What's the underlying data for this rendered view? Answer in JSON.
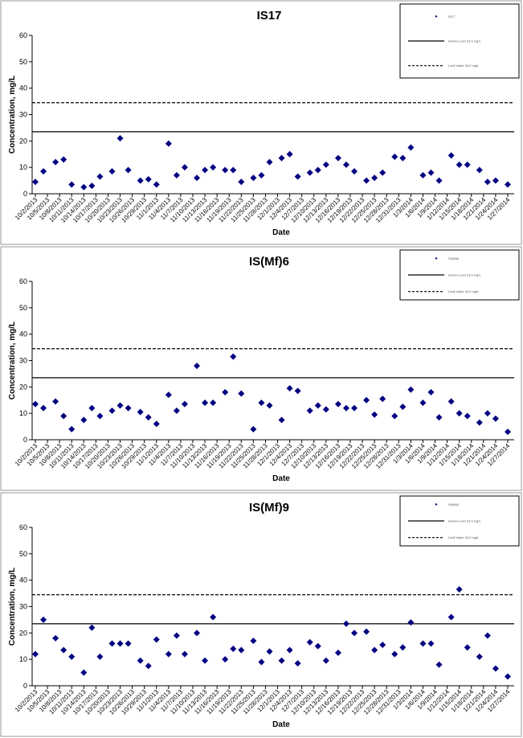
{
  "chart_data": [
    {
      "type": "scatter",
      "title": "IS17",
      "x_label": "Date",
      "y_label": "Concentration, mg/L",
      "xlim": [
        "10/2/2013",
        "1/27/2014"
      ],
      "xticks": [
        "10/2/2013",
        "10/5/2013",
        "10/8/2013",
        "10/11/2013",
        "10/14/2013",
        "10/17/2013",
        "10/20/2013",
        "10/23/2013",
        "10/26/2013",
        "10/29/2013",
        "11/1/2013",
        "11/4/2013",
        "11/7/2013",
        "11/10/2013",
        "11/13/2013",
        "11/16/2013",
        "11/19/2013",
        "11/22/2013",
        "11/25/2013",
        "11/28/2013",
        "12/1/2013",
        "12/4/2013",
        "12/7/2013",
        "12/10/2013",
        "12/13/2013",
        "12/16/2013",
        "12/19/2013",
        "12/22/2013",
        "12/25/2013",
        "12/28/2013",
        "12/31/2013",
        "1/3/2014",
        "1/6/2014",
        "1/9/2014",
        "1/12/2014",
        "1/15/2014",
        "1/18/2014",
        "1/21/2014",
        "1/24/2014",
        "1/27/2014"
      ],
      "x": [
        "10/2/2013",
        "10/4/2013",
        "10/7/2013",
        "10/9/2013",
        "10/11/2013",
        "10/14/2013",
        "10/16/2013",
        "10/18/2013",
        "10/21/2013",
        "10/23/2013",
        "10/25/2013",
        "10/28/2013",
        "10/30/2013",
        "11/1/2013",
        "11/4/2013",
        "11/6/2013",
        "11/8/2013",
        "11/11/2013",
        "11/13/2013",
        "11/15/2013",
        "11/18/2013",
        "11/20/2013",
        "11/22/2013",
        "11/25/2013",
        "11/27/2013",
        "11/29/2013",
        "12/2/2013",
        "12/4/2013",
        "12/6/2013",
        "12/9/2013",
        "12/11/2013",
        "12/13/2013",
        "12/16/2013",
        "12/18/2013",
        "12/20/2013",
        "12/23/2013",
        "12/25/2013",
        "12/27/2013",
        "12/30/2013",
        "1/1/2014",
        "1/3/2014",
        "1/6/2014",
        "1/8/2014",
        "1/10/2014",
        "1/13/2014",
        "1/15/2014",
        "1/17/2014",
        "1/20/2014",
        "1/22/2014",
        "1/24/2014",
        "1/27/2014"
      ],
      "ylim": [
        0,
        60
      ],
      "yticks": [
        0,
        10,
        20,
        30,
        40,
        50,
        60
      ],
      "series": [
        {
          "name": "IS17",
          "color": "#000080",
          "values": [
            4.5,
            8.5,
            12,
            13,
            3.5,
            2.5,
            3,
            6.5,
            8.5,
            21,
            9,
            5,
            5.5,
            3.5,
            19,
            7,
            10,
            6,
            9,
            10,
            9,
            9,
            4.5,
            6,
            7,
            12,
            13.5,
            15,
            6.5,
            8,
            9,
            11,
            13.5,
            11,
            8.5,
            5,
            6,
            8,
            14,
            13.5,
            17.5,
            7,
            8,
            5,
            14.5,
            11,
            11,
            9,
            4.5,
            5,
            3.5
          ]
        }
      ],
      "reference_lines": [
        {
          "name": "Action Level 23.5 mg/L",
          "value": 23.5,
          "style": "solid"
        },
        {
          "name": "Limit Value 34.5 mg/L",
          "value": 34.5,
          "style": "dashed"
        }
      ]
    },
    {
      "type": "scatter",
      "title": "IS(Mf)6",
      "x_label": "Date",
      "y_label": "Concentration, mg/L",
      "xlim": [
        "10/2/2013",
        "1/27/2014"
      ],
      "xticks": [
        "10/2/2013",
        "10/5/2013",
        "10/8/2013",
        "10/11/2013",
        "10/14/2013",
        "10/17/2013",
        "10/20/2013",
        "10/23/2013",
        "10/26/2013",
        "10/29/2013",
        "11/1/2013",
        "11/4/2013",
        "11/7/2013",
        "11/10/2013",
        "11/13/2013",
        "11/16/2013",
        "11/19/2013",
        "11/22/2013",
        "11/25/2013",
        "11/28/2013",
        "12/1/2013",
        "12/4/2013",
        "12/7/2013",
        "12/10/2013",
        "12/13/2013",
        "12/16/2013",
        "12/19/2013",
        "12/22/2013",
        "12/25/2013",
        "12/28/2013",
        "12/31/2013",
        "1/3/2014",
        "1/6/2014",
        "1/9/2014",
        "1/12/2014",
        "1/15/2014",
        "1/18/2014",
        "1/21/2014",
        "1/24/2014",
        "1/27/2014"
      ],
      "x": [
        "10/2/2013",
        "10/4/2013",
        "10/7/2013",
        "10/9/2013",
        "10/11/2013",
        "10/14/2013",
        "10/16/2013",
        "10/18/2013",
        "10/21/2013",
        "10/23/2013",
        "10/25/2013",
        "10/28/2013",
        "10/30/2013",
        "11/1/2013",
        "11/4/2013",
        "11/6/2013",
        "11/8/2013",
        "11/11/2013",
        "11/13/2013",
        "11/15/2013",
        "11/18/2013",
        "11/20/2013",
        "11/22/2013",
        "11/25/2013",
        "11/27/2013",
        "11/29/2013",
        "12/2/2013",
        "12/4/2013",
        "12/6/2013",
        "12/9/2013",
        "12/11/2013",
        "12/13/2013",
        "12/16/2013",
        "12/18/2013",
        "12/20/2013",
        "12/23/2013",
        "12/25/2013",
        "12/27/2013",
        "12/30/2013",
        "1/1/2014",
        "1/3/2014",
        "1/6/2014",
        "1/8/2014",
        "1/10/2014",
        "1/13/2014",
        "1/15/2014",
        "1/17/2014",
        "1/20/2014",
        "1/22/2014",
        "1/24/2014",
        "1/27/2014"
      ],
      "ylim": [
        0,
        60
      ],
      "yticks": [
        0,
        10,
        20,
        30,
        40,
        50,
        60
      ],
      "series": [
        {
          "name": "IS(Mf)6",
          "color": "#000080",
          "values": [
            13.5,
            12,
            14.5,
            9,
            4,
            7.5,
            12,
            9,
            11,
            13,
            12,
            10.5,
            8.5,
            6,
            17,
            11,
            13.5,
            28,
            14,
            14,
            18,
            31.5,
            17.5,
            4,
            14,
            13,
            7.5,
            19.5,
            18.5,
            11,
            13,
            11.5,
            13.5,
            12,
            12,
            15,
            9.5,
            15.5,
            9,
            12.5,
            19,
            14,
            18,
            8.5,
            14.5,
            10,
            9,
            6.5,
            10,
            8,
            3
          ]
        }
      ],
      "reference_lines": [
        {
          "name": "Action Level 23.5 mg/L",
          "value": 23.5,
          "style": "solid"
        },
        {
          "name": "Limit Value 34.5 mg/L",
          "value": 34.5,
          "style": "dashed"
        }
      ]
    },
    {
      "type": "scatter",
      "title": "IS(Mf)9",
      "x_label": "Date",
      "y_label": "Concentration, mg/L",
      "xlim": [
        "10/2/2013",
        "1/27/2014"
      ],
      "xticks": [
        "10/2/2013",
        "10/5/2013",
        "10/8/2013",
        "10/11/2013",
        "10/14/2013",
        "10/17/2013",
        "10/20/2013",
        "10/23/2013",
        "10/26/2013",
        "10/29/2013",
        "11/1/2013",
        "11/4/2013",
        "11/7/2013",
        "11/10/2013",
        "11/13/2013",
        "11/16/2013",
        "11/19/2013",
        "11/22/2013",
        "11/25/2013",
        "11/28/2013",
        "12/1/2013",
        "12/4/2013",
        "12/7/2013",
        "12/10/2013",
        "12/13/2013",
        "12/16/2013",
        "12/19/2013",
        "12/22/2013",
        "12/25/2013",
        "12/28/2013",
        "12/31/2013",
        "1/3/2014",
        "1/6/2014",
        "1/9/2014",
        "1/12/2014",
        "1/15/2014",
        "1/18/2014",
        "1/21/2014",
        "1/24/2014",
        "1/27/2014"
      ],
      "x": [
        "10/2/2013",
        "10/4/2013",
        "10/7/2013",
        "10/9/2013",
        "10/11/2013",
        "10/14/2013",
        "10/16/2013",
        "10/18/2013",
        "10/21/2013",
        "10/23/2013",
        "10/25/2013",
        "10/28/2013",
        "10/30/2013",
        "11/1/2013",
        "11/4/2013",
        "11/6/2013",
        "11/8/2013",
        "11/11/2013",
        "11/13/2013",
        "11/15/2013",
        "11/18/2013",
        "11/20/2013",
        "11/22/2013",
        "11/25/2013",
        "11/27/2013",
        "11/29/2013",
        "12/2/2013",
        "12/4/2013",
        "12/6/2013",
        "12/9/2013",
        "12/11/2013",
        "12/13/2013",
        "12/16/2013",
        "12/18/2013",
        "12/20/2013",
        "12/23/2013",
        "12/25/2013",
        "12/27/2013",
        "12/30/2013",
        "1/1/2014",
        "1/3/2014",
        "1/6/2014",
        "1/8/2014",
        "1/10/2014",
        "1/13/2014",
        "1/15/2014",
        "1/17/2014",
        "1/20/2014",
        "1/22/2014",
        "1/24/2014",
        "1/27/2014"
      ],
      "ylim": [
        0,
        60
      ],
      "yticks": [
        0,
        10,
        20,
        30,
        40,
        50,
        60
      ],
      "series": [
        {
          "name": "IS(Mf)9",
          "color": "#000080",
          "values": [
            12,
            25,
            18,
            13.5,
            11,
            5,
            22,
            11,
            16,
            16,
            16,
            9.5,
            7.5,
            17.5,
            12,
            19,
            12,
            20,
            9.5,
            26,
            10,
            14,
            13.5,
            17,
            9,
            13,
            9.5,
            13.5,
            8.5,
            16.5,
            15,
            9.5,
            12.5,
            23.5,
            20,
            20.5,
            13.5,
            15.5,
            12,
            14.5,
            24,
            16,
            16,
            8,
            26,
            36.5,
            14.5,
            11,
            19,
            6.5,
            3.5
          ]
        }
      ],
      "reference_lines": [
        {
          "name": "Action Level 23.5 mg/L",
          "value": 23.5,
          "style": "solid"
        },
        {
          "name": "Limit Value 34.5 mg/L",
          "value": 34.5,
          "style": "dashed"
        }
      ]
    }
  ]
}
